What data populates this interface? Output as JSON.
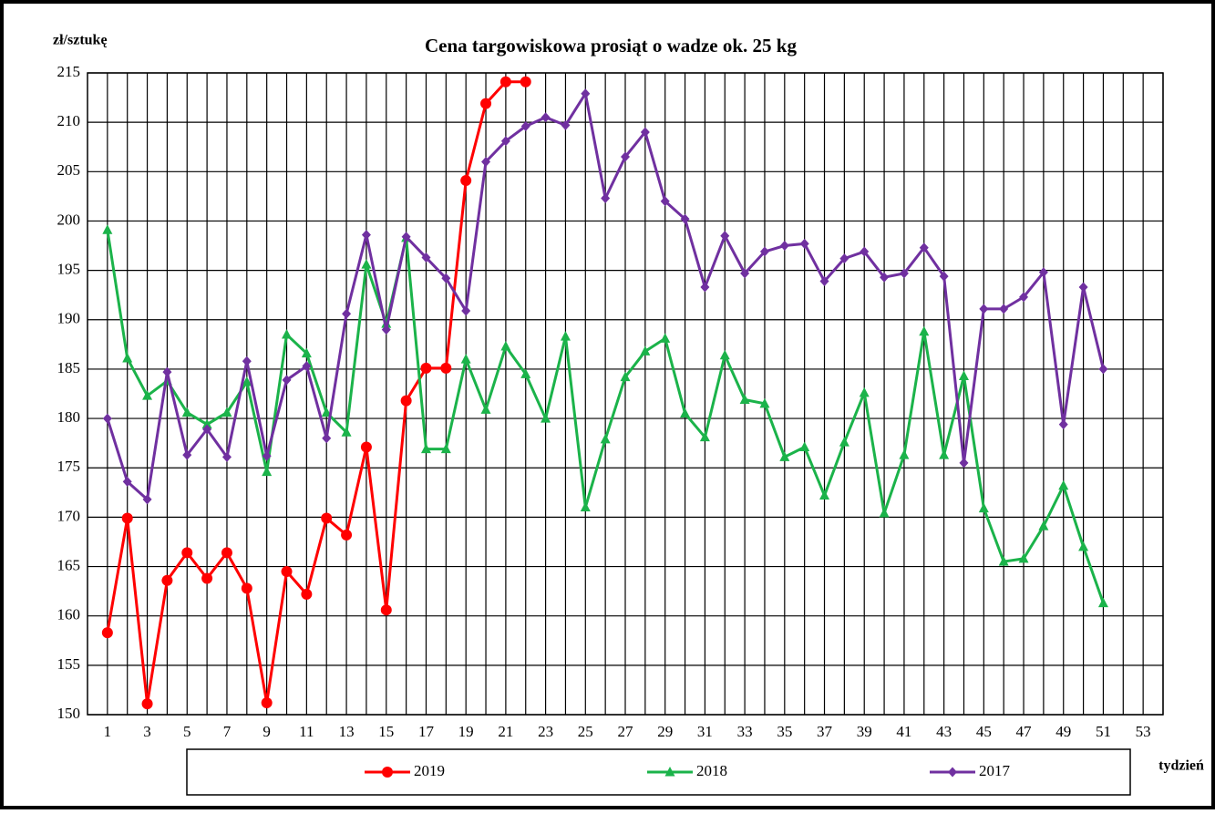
{
  "chart_data": {
    "type": "line",
    "title": "Cena targowiskowa prosiąt o wadze ok. 25 kg",
    "ylabel": "zł/sztukę",
    "xlabel": "tydzień",
    "x": [
      1,
      2,
      3,
      4,
      5,
      6,
      7,
      8,
      9,
      10,
      11,
      12,
      13,
      14,
      15,
      16,
      17,
      18,
      19,
      20,
      21,
      22,
      23,
      24,
      25,
      26,
      27,
      28,
      29,
      30,
      31,
      32,
      33,
      34,
      35,
      36,
      37,
      38,
      39,
      40,
      41,
      42,
      43,
      44,
      45,
      46,
      47,
      48,
      49,
      50,
      51
    ],
    "xlim": [
      0,
      54
    ],
    "xticks": [
      1,
      3,
      5,
      7,
      9,
      11,
      13,
      15,
      17,
      19,
      21,
      23,
      25,
      27,
      29,
      31,
      33,
      35,
      37,
      39,
      41,
      43,
      45,
      47,
      49,
      51,
      53
    ],
    "xminorticks": [
      2,
      4,
      6,
      8,
      10,
      12,
      14,
      16,
      18,
      20,
      22,
      24,
      26,
      28,
      30,
      32,
      34,
      36,
      38,
      40,
      42,
      44,
      46,
      48,
      50,
      52,
      54
    ],
    "ylim": [
      150,
      215
    ],
    "yticks": [
      150,
      155,
      160,
      165,
      170,
      175,
      180,
      185,
      190,
      195,
      200,
      205,
      210,
      215
    ],
    "grid": true,
    "legend": "bottom",
    "series": [
      {
        "name": "2019",
        "color": "#ff0000",
        "marker": "circle",
        "values": [
          158.3,
          169.9,
          151.1,
          163.6,
          166.4,
          163.8,
          166.4,
          162.8,
          151.2,
          164.5,
          162.2,
          169.9,
          168.2,
          177.1,
          160.6,
          181.8,
          185.1,
          185.1,
          204.1,
          211.9,
          214.1,
          214.1,
          null,
          null,
          null,
          null,
          null,
          null,
          null,
          null,
          null,
          null,
          null,
          null,
          null,
          null,
          null,
          null,
          null,
          null,
          null,
          null,
          null,
          null,
          null,
          null,
          null,
          null,
          null,
          null,
          null
        ]
      },
      {
        "name": "2018",
        "color": "#1bb34a",
        "marker": "triangle",
        "values": [
          199.1,
          186.1,
          182.3,
          183.8,
          180.6,
          179.4,
          180.6,
          183.7,
          174.6,
          188.5,
          186.6,
          180.6,
          178.6,
          195.6,
          189.6,
          198.3,
          176.9,
          176.9,
          186.0,
          180.9,
          187.3,
          184.5,
          180.0,
          188.3,
          171.0,
          177.9,
          184.2,
          186.8,
          188.1,
          180.5,
          178.1,
          186.4,
          181.9,
          181.5,
          176.1,
          177.1,
          172.2,
          177.6,
          182.6,
          170.4,
          176.3,
          188.8,
          176.3,
          184.3,
          170.9,
          165.5,
          165.8,
          169.1,
          173.2,
          167.0,
          161.3
        ]
      },
      {
        "name": "2017",
        "color": "#7030a0",
        "marker": "diamond",
        "values": [
          180.0,
          173.6,
          171.8,
          184.7,
          176.3,
          178.9,
          176.1,
          185.8,
          176.2,
          183.9,
          185.3,
          178.0,
          190.6,
          198.6,
          189.0,
          198.4,
          196.3,
          194.2,
          190.9,
          206.0,
          208.1,
          209.6,
          210.5,
          209.7,
          212.9,
          202.3,
          206.5,
          209.0,
          202.0,
          200.2,
          193.3,
          198.5,
          194.7,
          196.9,
          197.5,
          197.7,
          193.9,
          196.2,
          196.9,
          194.3,
          194.7,
          197.3,
          194.4,
          175.5,
          191.1,
          191.1,
          192.3,
          194.8,
          179.4,
          193.3,
          185.0
        ]
      }
    ]
  }
}
